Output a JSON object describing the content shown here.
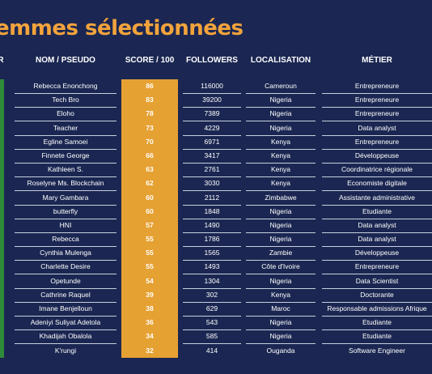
{
  "title": "emmes sélectionnées",
  "headers": {
    "edge": "R",
    "name": "NOM / PSEUDO",
    "score": "SCORE / 100",
    "followers": "FOLLOWERS",
    "location": "LOCALISATION",
    "job": "MÉTIER"
  },
  "colors": {
    "title": "#f2a33c",
    "background": "#1b2752",
    "score_column": "#e6a133",
    "rank_column": "#2e8b3a"
  },
  "rows": [
    {
      "name": "Rebecca Enonchong",
      "score": "86",
      "followers": "116000",
      "location": "Cameroun",
      "job": "Entrepreneure"
    },
    {
      "name": "Tech Bro",
      "score": "83",
      "followers": "39200",
      "location": "Nigeria",
      "job": "Entrepreneure"
    },
    {
      "name": "Eloho",
      "score": "78",
      "followers": "7389",
      "location": "Nigeria",
      "job": "Entrepreneure"
    },
    {
      "name": "Teacher",
      "score": "73",
      "followers": "4229",
      "location": "Nigeria",
      "job": "Data analyst"
    },
    {
      "name": "Egline Samoei",
      "score": "70",
      "followers": "6971",
      "location": "Kenya",
      "job": "Entrepreneure"
    },
    {
      "name": "Finnete George",
      "score": "66",
      "followers": "3417",
      "location": "Kenya",
      "job": "Développeuse"
    },
    {
      "name": "Kathleen S.",
      "score": "63",
      "followers": "2761",
      "location": "Kenya",
      "job": "Coordinatrice régionale"
    },
    {
      "name": "Roselyne Ms. Blockchain",
      "score": "62",
      "followers": "3030",
      "location": "Kenya",
      "job": "Economiste digitale"
    },
    {
      "name": "Mary Gambara",
      "score": "60",
      "followers": "2112",
      "location": "Zimbabwe",
      "job": "Assistante administrative"
    },
    {
      "name": "butterfly",
      "score": "60",
      "followers": "1848",
      "location": "Nigeria",
      "job": "Etudiante"
    },
    {
      "name": "HNI",
      "score": "57",
      "followers": "1490",
      "location": "Nigeria",
      "job": "Data analyst"
    },
    {
      "name": "Rebecca",
      "score": "55",
      "followers": "1786",
      "location": "Nigeria",
      "job": "Data analyst"
    },
    {
      "name": "Cynthia Mulenga",
      "score": "55",
      "followers": "1565",
      "location": "Zambie",
      "job": "Développeuse"
    },
    {
      "name": "Charlette Desire",
      "score": "55",
      "followers": "1493",
      "location": "Côte d'Ivoire",
      "job": "Entrepreneure"
    },
    {
      "name": "Opetunde",
      "score": "54",
      "followers": "1304",
      "location": "Nigeria",
      "job": "Data Scientist"
    },
    {
      "name": "Cathrine Raquel",
      "score": "39",
      "followers": "302",
      "location": "Kenya",
      "job": "Doctorante"
    },
    {
      "name": "Imane Benjelloun",
      "score": "38",
      "followers": "629",
      "location": "Maroc",
      "job": "Responsable admissions Afrique"
    },
    {
      "name": "Adeniyi Suliyat Adetola",
      "score": "36",
      "followers": "543",
      "location": "Nigeria",
      "job": "Etudiante"
    },
    {
      "name": "Khadijah Obalola",
      "score": "34",
      "followers": "585",
      "location": "Nigeria",
      "job": "Etudiante"
    },
    {
      "name": "K'rungi",
      "score": "32",
      "followers": "414",
      "location": "Ouganda",
      "job": "Software Engineer"
    }
  ]
}
